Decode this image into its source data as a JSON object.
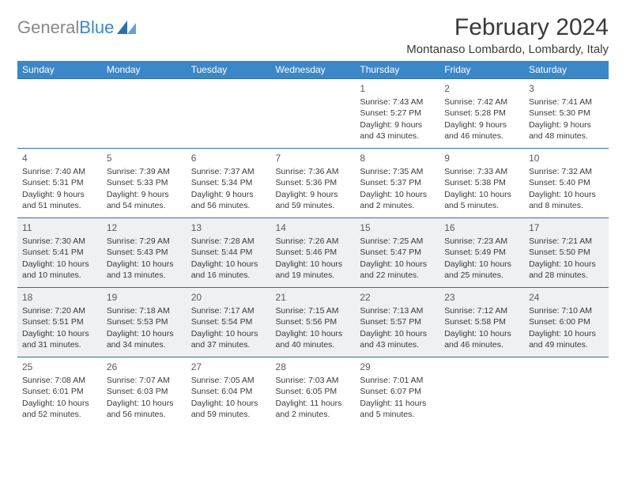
{
  "logo": {
    "part1": "General",
    "part2": "Blue"
  },
  "title": {
    "month": "February 2024",
    "location": "Montanaso Lombardo, Lombardy, Italy"
  },
  "colors": {
    "header_bg": "#3b87c8",
    "header_fg": "#ffffff",
    "row_border": "#2f6fa8",
    "shade_bg": "#eff0f1",
    "text": "#3a3a3a",
    "logo_gray": "#888888",
    "logo_blue": "#3b87c8"
  },
  "day_headers": [
    "Sunday",
    "Monday",
    "Tuesday",
    "Wednesday",
    "Thursday",
    "Friday",
    "Saturday"
  ],
  "weeks": [
    {
      "shaded": false,
      "days": [
        null,
        null,
        null,
        null,
        {
          "n": "1",
          "sunrise": "Sunrise: 7:43 AM",
          "sunset": "Sunset: 5:27 PM",
          "daylight1": "Daylight: 9 hours",
          "daylight2": "and 43 minutes."
        },
        {
          "n": "2",
          "sunrise": "Sunrise: 7:42 AM",
          "sunset": "Sunset: 5:28 PM",
          "daylight1": "Daylight: 9 hours",
          "daylight2": "and 46 minutes."
        },
        {
          "n": "3",
          "sunrise": "Sunrise: 7:41 AM",
          "sunset": "Sunset: 5:30 PM",
          "daylight1": "Daylight: 9 hours",
          "daylight2": "and 48 minutes."
        }
      ]
    },
    {
      "shaded": false,
      "days": [
        {
          "n": "4",
          "sunrise": "Sunrise: 7:40 AM",
          "sunset": "Sunset: 5:31 PM",
          "daylight1": "Daylight: 9 hours",
          "daylight2": "and 51 minutes."
        },
        {
          "n": "5",
          "sunrise": "Sunrise: 7:39 AM",
          "sunset": "Sunset: 5:33 PM",
          "daylight1": "Daylight: 9 hours",
          "daylight2": "and 54 minutes."
        },
        {
          "n": "6",
          "sunrise": "Sunrise: 7:37 AM",
          "sunset": "Sunset: 5:34 PM",
          "daylight1": "Daylight: 9 hours",
          "daylight2": "and 56 minutes."
        },
        {
          "n": "7",
          "sunrise": "Sunrise: 7:36 AM",
          "sunset": "Sunset: 5:36 PM",
          "daylight1": "Daylight: 9 hours",
          "daylight2": "and 59 minutes."
        },
        {
          "n": "8",
          "sunrise": "Sunrise: 7:35 AM",
          "sunset": "Sunset: 5:37 PM",
          "daylight1": "Daylight: 10 hours",
          "daylight2": "and 2 minutes."
        },
        {
          "n": "9",
          "sunrise": "Sunrise: 7:33 AM",
          "sunset": "Sunset: 5:38 PM",
          "daylight1": "Daylight: 10 hours",
          "daylight2": "and 5 minutes."
        },
        {
          "n": "10",
          "sunrise": "Sunrise: 7:32 AM",
          "sunset": "Sunset: 5:40 PM",
          "daylight1": "Daylight: 10 hours",
          "daylight2": "and 8 minutes."
        }
      ]
    },
    {
      "shaded": true,
      "days": [
        {
          "n": "11",
          "sunrise": "Sunrise: 7:30 AM",
          "sunset": "Sunset: 5:41 PM",
          "daylight1": "Daylight: 10 hours",
          "daylight2": "and 10 minutes."
        },
        {
          "n": "12",
          "sunrise": "Sunrise: 7:29 AM",
          "sunset": "Sunset: 5:43 PM",
          "daylight1": "Daylight: 10 hours",
          "daylight2": "and 13 minutes."
        },
        {
          "n": "13",
          "sunrise": "Sunrise: 7:28 AM",
          "sunset": "Sunset: 5:44 PM",
          "daylight1": "Daylight: 10 hours",
          "daylight2": "and 16 minutes."
        },
        {
          "n": "14",
          "sunrise": "Sunrise: 7:26 AM",
          "sunset": "Sunset: 5:46 PM",
          "daylight1": "Daylight: 10 hours",
          "daylight2": "and 19 minutes."
        },
        {
          "n": "15",
          "sunrise": "Sunrise: 7:25 AM",
          "sunset": "Sunset: 5:47 PM",
          "daylight1": "Daylight: 10 hours",
          "daylight2": "and 22 minutes."
        },
        {
          "n": "16",
          "sunrise": "Sunrise: 7:23 AM",
          "sunset": "Sunset: 5:49 PM",
          "daylight1": "Daylight: 10 hours",
          "daylight2": "and 25 minutes."
        },
        {
          "n": "17",
          "sunrise": "Sunrise: 7:21 AM",
          "sunset": "Sunset: 5:50 PM",
          "daylight1": "Daylight: 10 hours",
          "daylight2": "and 28 minutes."
        }
      ]
    },
    {
      "shaded": true,
      "days": [
        {
          "n": "18",
          "sunrise": "Sunrise: 7:20 AM",
          "sunset": "Sunset: 5:51 PM",
          "daylight1": "Daylight: 10 hours",
          "daylight2": "and 31 minutes."
        },
        {
          "n": "19",
          "sunrise": "Sunrise: 7:18 AM",
          "sunset": "Sunset: 5:53 PM",
          "daylight1": "Daylight: 10 hours",
          "daylight2": "and 34 minutes."
        },
        {
          "n": "20",
          "sunrise": "Sunrise: 7:17 AM",
          "sunset": "Sunset: 5:54 PM",
          "daylight1": "Daylight: 10 hours",
          "daylight2": "and 37 minutes."
        },
        {
          "n": "21",
          "sunrise": "Sunrise: 7:15 AM",
          "sunset": "Sunset: 5:56 PM",
          "daylight1": "Daylight: 10 hours",
          "daylight2": "and 40 minutes."
        },
        {
          "n": "22",
          "sunrise": "Sunrise: 7:13 AM",
          "sunset": "Sunset: 5:57 PM",
          "daylight1": "Daylight: 10 hours",
          "daylight2": "and 43 minutes."
        },
        {
          "n": "23",
          "sunrise": "Sunrise: 7:12 AM",
          "sunset": "Sunset: 5:58 PM",
          "daylight1": "Daylight: 10 hours",
          "daylight2": "and 46 minutes."
        },
        {
          "n": "24",
          "sunrise": "Sunrise: 7:10 AM",
          "sunset": "Sunset: 6:00 PM",
          "daylight1": "Daylight: 10 hours",
          "daylight2": "and 49 minutes."
        }
      ]
    },
    {
      "shaded": false,
      "days": [
        {
          "n": "25",
          "sunrise": "Sunrise: 7:08 AM",
          "sunset": "Sunset: 6:01 PM",
          "daylight1": "Daylight: 10 hours",
          "daylight2": "and 52 minutes."
        },
        {
          "n": "26",
          "sunrise": "Sunrise: 7:07 AM",
          "sunset": "Sunset: 6:03 PM",
          "daylight1": "Daylight: 10 hours",
          "daylight2": "and 56 minutes."
        },
        {
          "n": "27",
          "sunrise": "Sunrise: 7:05 AM",
          "sunset": "Sunset: 6:04 PM",
          "daylight1": "Daylight: 10 hours",
          "daylight2": "and 59 minutes."
        },
        {
          "n": "28",
          "sunrise": "Sunrise: 7:03 AM",
          "sunset": "Sunset: 6:05 PM",
          "daylight1": "Daylight: 11 hours",
          "daylight2": "and 2 minutes."
        },
        {
          "n": "29",
          "sunrise": "Sunrise: 7:01 AM",
          "sunset": "Sunset: 6:07 PM",
          "daylight1": "Daylight: 11 hours",
          "daylight2": "and 5 minutes."
        },
        null,
        null
      ]
    }
  ]
}
